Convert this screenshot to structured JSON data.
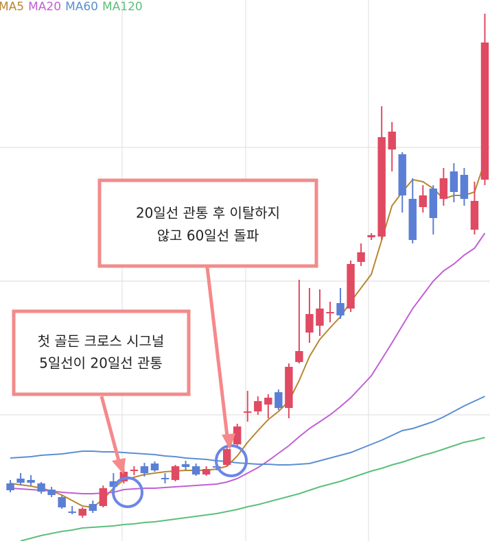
{
  "chart_data": {
    "type": "candlestick",
    "categories": [
      null,
      null,
      null,
      null,
      null,
      null,
      null,
      null,
      null,
      null,
      null,
      null,
      null,
      null,
      null,
      null,
      null,
      null,
      null,
      null,
      null,
      null,
      null,
      null,
      null,
      null,
      null,
      null,
      null,
      null,
      null,
      null,
      null,
      null,
      null,
      null,
      null,
      null,
      null,
      null,
      null,
      null,
      null,
      null,
      null,
      null,
      null
    ],
    "open": [
      95,
      102,
      100,
      95,
      86,
      75,
      54,
      48,
      65,
      62,
      98,
      98,
      113,
      120,
      124,
      103,
      100,
      123,
      120,
      108,
      120,
      122,
      152,
      198,
      200,
      210,
      228,
      205,
      272,
      315,
      325,
      343,
      358,
      350,
      418,
      454,
      455,
      582,
      575,
      510,
      498,
      525,
      510,
      550,
      545,
      465,
      538
    ],
    "high": [
      100,
      110,
      107,
      97,
      90,
      78,
      62,
      60,
      70,
      92,
      110,
      130,
      120,
      125,
      127,
      110,
      122,
      128,
      124,
      120,
      124,
      150,
      182,
      230,
      222,
      225,
      232,
      270,
      392,
      380,
      378,
      360,
      380,
      420,
      445,
      460,
      645,
      622,
      578,
      540,
      530,
      530,
      555,
      562,
      555,
      535,
      780
    ],
    "low": [
      82,
      92,
      92,
      80,
      75,
      58,
      50,
      45,
      52,
      60,
      88,
      95,
      107,
      105,
      112,
      95,
      98,
      114,
      106,
      106,
      114,
      120,
      150,
      185,
      195,
      190,
      202,
      190,
      270,
      300,
      310,
      330,
      335,
      345,
      412,
      450,
      450,
      550,
      490,
      445,
      490,
      458,
      500,
      505,
      500,
      458,
      530
    ],
    "close": [
      85,
      96,
      96,
      83,
      78,
      60,
      52,
      58,
      55,
      88,
      90,
      112,
      115,
      110,
      114,
      101,
      120,
      119,
      108,
      116,
      118,
      145,
      178,
      200,
      215,
      220,
      205,
      265,
      288,
      342,
      350,
      345,
      340,
      415,
      432,
      457,
      600,
      608,
      515,
      450,
      515,
      482,
      540,
      520,
      510,
      507,
      738
    ],
    "up_color": "#e04a62",
    "down_color": "#5b7fd4",
    "series": [
      {
        "name": "MA5",
        "color": "#b8862f",
        "values": [
          95,
          93,
          91,
          88,
          84,
          78,
          70,
          62,
          60,
          72,
          88,
          100,
          104,
          108,
          110,
          112,
          113,
          114,
          114,
          114,
          116,
          120,
          135,
          155,
          172,
          188,
          200,
          215,
          245,
          280,
          305,
          322,
          338,
          360,
          380,
          400,
          450,
          500,
          520,
          538,
          535,
          525,
          510,
          515,
          515,
          520,
          565
        ]
      },
      {
        "name": "MA20",
        "color": "#c05fd6",
        "values": [
          88,
          87,
          86,
          85,
          84,
          82,
          81,
          80,
          80,
          81,
          82,
          86,
          87,
          88,
          88,
          89,
          90,
          91,
          92,
          93,
          94,
          97,
          102,
          110,
          118,
          128,
          139,
          150,
          163,
          175,
          185,
          195,
          207,
          220,
          236,
          252,
          276,
          300,
          325,
          350,
          370,
          390,
          405,
          415,
          428,
          438,
          460
        ]
      },
      {
        "name": "MA60",
        "color": "#5b8fd0",
        "values": [
          132,
          133,
          134,
          136,
          137,
          138,
          140,
          142,
          142,
          141,
          141,
          140,
          139,
          138,
          137,
          135,
          134,
          132,
          131,
          130,
          128,
          127,
          125,
          124,
          123,
          123,
          122,
          122,
          123,
          124,
          128,
          132,
          136,
          140,
          146,
          152,
          158,
          165,
          172,
          175,
          180,
          185,
          192,
          200,
          208,
          215,
          222
        ]
      },
      {
        "name": "MA120",
        "color": "#5cbf7a",
        "values": [
          null,
          11,
          15,
          19,
          22,
          25,
          27,
          30,
          31,
          32,
          33,
          35,
          36,
          38,
          39,
          41,
          43,
          45,
          47,
          49,
          51,
          54,
          57,
          61,
          64,
          68,
          72,
          76,
          80,
          85,
          90,
          94,
          98,
          103,
          108,
          113,
          117,
          122,
          126,
          131,
          136,
          140,
          145,
          150,
          155,
          158,
          162
        ]
      }
    ],
    "ylim": [
      10,
      780
    ],
    "yticks": [
      195,
      390,
      585
    ],
    "grid": true,
    "annotations": [
      {
        "lines": [
          "20일선 관통 후 이탈하지",
          "않고 60일선 돌파"
        ]
      },
      {
        "lines": [
          "첫 골든 크로스 시그널",
          "5일선이 20일선 관통"
        ]
      }
    ]
  }
}
